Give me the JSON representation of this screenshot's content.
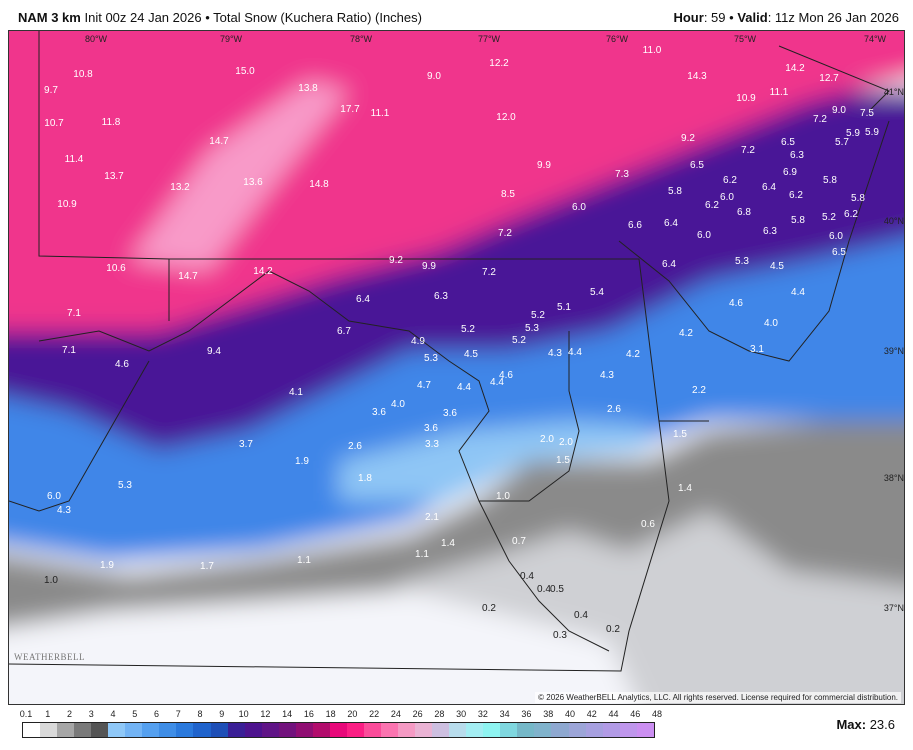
{
  "header": {
    "model": "NAM 3 km",
    "init": "Init 00z 24 Jan 2026",
    "sep": "•",
    "product": "Total Snow (Kuchera Ratio) (Inches)",
    "hour_label": "Hour",
    "hour": "59",
    "valid_label": "Valid",
    "valid": "11z Mon 26 Jan 2026"
  },
  "map": {
    "longitude_labels": [
      "80°W",
      "79°W",
      "78°W",
      "77°W",
      "76°W",
      "75°W",
      "74°W"
    ],
    "latitude_labels": [
      "41°N",
      "40°N",
      "39°N",
      "38°N",
      "37°N"
    ],
    "snow_labels": [
      "10.8",
      "9.7",
      "10.7",
      "11.8",
      "11.4",
      "13.7",
      "10.9",
      "15.0",
      "13.8",
      "17.7",
      "11.1",
      "14.7",
      "13.2",
      "13.6",
      "14.8",
      "9.0",
      "12.2",
      "12.0",
      "11.0",
      "14.3",
      "14.2",
      "12.7",
      "10.9",
      "11.1",
      "9.2",
      "9.9",
      "8.5",
      "7.3",
      "6.5",
      "7.2",
      "6.5",
      "6.3",
      "7.2",
      "9.0",
      "7.5",
      "5.9",
      "5.9",
      "5.7",
      "6.2",
      "6.4",
      "6.9",
      "6.2",
      "5.8",
      "5.8",
      "6.0",
      "6.2",
      "6.8",
      "6.0",
      "6.6",
      "6.4",
      "6.0",
      "6.3",
      "5.8",
      "5.2",
      "6.2",
      "5.8",
      "6.0",
      "6.5",
      "7.2",
      "10.6",
      "14.7",
      "14.2",
      "9.2",
      "9.9",
      "7.2",
      "6.4",
      "5.3",
      "4.5",
      "6.4",
      "6.3",
      "5.4",
      "4.4",
      "4.6",
      "4.0",
      "7.1",
      "6.7",
      "5.2",
      "5.2",
      "5.1",
      "5.3",
      "5.2",
      "4.9",
      "4.2",
      "3.1",
      "7.1",
      "4.6",
      "9.4",
      "5.3",
      "4.5",
      "4.3",
      "4.4",
      "4.2",
      "4.4",
      "4.6",
      "4.4",
      "4.7",
      "4.3",
      "4.1",
      "4.0",
      "3.6",
      "3.6",
      "3.6",
      "2.2",
      "2.6",
      "3.7",
      "2.6",
      "3.3",
      "2.0",
      "2.0",
      "1.5",
      "1.9",
      "1.8",
      "1.5",
      "1.4",
      "5.3",
      "6.0",
      "4.3",
      "1.0",
      "2.1",
      "0.6",
      "1.4",
      "0.7",
      "1.1",
      "1.1",
      "1.9",
      "1.7",
      "0.4",
      "1.0",
      "0.4",
      "0.5",
      "0.2",
      "0.4",
      "0.3",
      "0.2"
    ]
  },
  "logo_text": "WEATHERBELL",
  "copyright": "© 2026 WeatherBELL Analytics, LLC. All rights reserved. License required for commercial distribution.",
  "colorbar": {
    "ticks": [
      "0.1",
      "1",
      "2",
      "3",
      "4",
      "5",
      "6",
      "7",
      "8",
      "9",
      "10",
      "12",
      "14",
      "16",
      "18",
      "20",
      "22",
      "24",
      "26",
      "28",
      "30",
      "32",
      "34",
      "36",
      "38",
      "40",
      "42",
      "44",
      "46",
      "48"
    ],
    "colors": [
      "#ffffff",
      "#d9d9d9",
      "#a6a6a6",
      "#7a7a7a",
      "#555555",
      "#8fc8f8",
      "#73b4f5",
      "#55a0ef",
      "#3e8de6",
      "#2a79dc",
      "#1f63cc",
      "#1e4fb7",
      "#3a1f96",
      "#4d138e",
      "#601487",
      "#72127d",
      "#900e73",
      "#b20c6c",
      "#e8087a",
      "#fb1e84",
      "#fb4c9a",
      "#fb74b0",
      "#f59ac4",
      "#eab3d4",
      "#cdbfe0",
      "#b8dcec",
      "#a4eef3",
      "#8ef4f1",
      "#7fd7df",
      "#75b8c8",
      "#80b3cc",
      "#8ea8d0",
      "#9ca5d8",
      "#a7a0e0",
      "#b29be6",
      "#bf96ec",
      "#cc8ff2"
    ],
    "max_label": "Max:",
    "max_value": "23.6"
  },
  "colors": {
    "heavy_snow": "#f0328c",
    "moderate_snow": "#5a1a9e",
    "light_snow": "#3e7ee6",
    "trace": "#7a7a7a",
    "none": "#f4f5fa"
  }
}
